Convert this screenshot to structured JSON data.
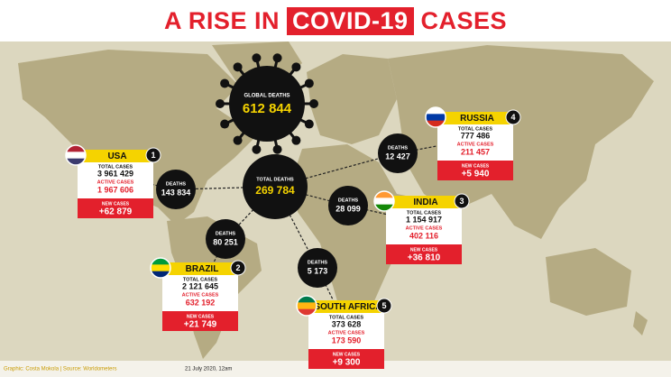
{
  "title": {
    "part1": "A RISE IN",
    "highlight": "COVID-19",
    "part2": "CASES"
  },
  "global_deaths": {
    "label": "GLOBAL DEATHS",
    "value": "612 844"
  },
  "total_deaths": {
    "label": "TOTAL DEATHS",
    "value": "269 784"
  },
  "labels": {
    "deaths": "DEATHS",
    "total_cases": "TOTAL CASES",
    "active_cases": "ACTIVE CASES",
    "new_cases": "NEW CASES"
  },
  "countries": [
    {
      "rank": "1",
      "name": "USA",
      "deaths": "143 834",
      "total_cases": "3 961 429",
      "active_cases": "1 967 606",
      "new_cases": "+62 879"
    },
    {
      "rank": "2",
      "name": "BRAZIL",
      "deaths": "80 251",
      "total_cases": "2 121 645",
      "active_cases": "632 192",
      "new_cases": "+21 749"
    },
    {
      "rank": "3",
      "name": "INDIA",
      "deaths": "28 099",
      "total_cases": "1 154 917",
      "active_cases": "402 116",
      "new_cases": "+36 810"
    },
    {
      "rank": "4",
      "name": "RUSSIA",
      "deaths": "12 427",
      "total_cases": "777 486",
      "active_cases": "211 457",
      "new_cases": "+5 940"
    },
    {
      "rank": "5",
      "name": "SOUTH AFRICA",
      "deaths": "5 173",
      "total_cases": "373 628",
      "active_cases": "173 590",
      "new_cases": "+9 300"
    }
  ],
  "footer": {
    "credit": "Graphic: Costa Mokola | Source: Worldometers",
    "date": "21 July 2020, 12am"
  }
}
